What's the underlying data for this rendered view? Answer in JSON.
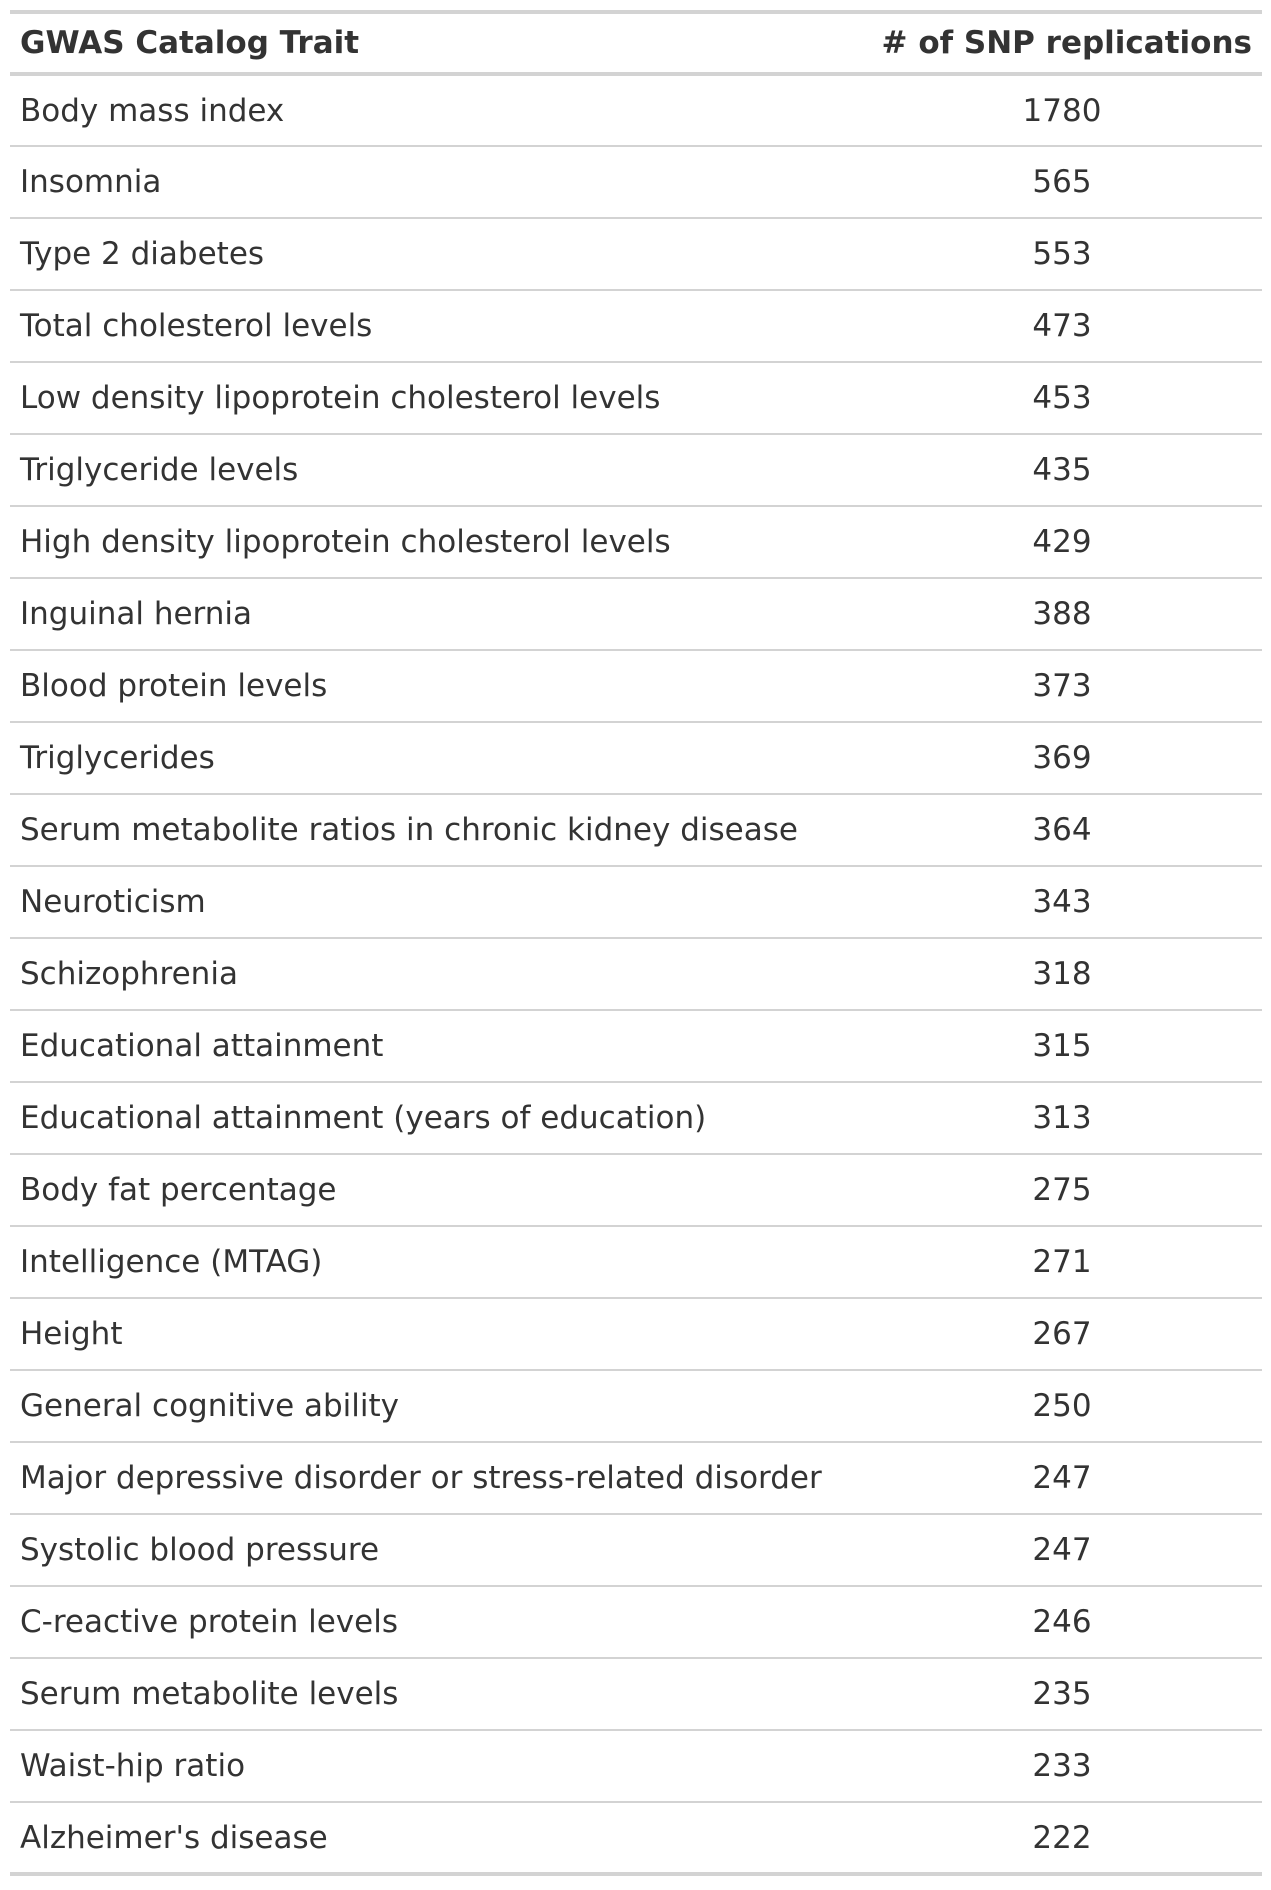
{
  "table": {
    "headers": {
      "trait": "GWAS Catalog Trait",
      "count": "# of SNP replications"
    },
    "rows": [
      {
        "trait": "Body mass index",
        "count": "1780"
      },
      {
        "trait": "Insomnia",
        "count": "565"
      },
      {
        "trait": "Type 2 diabetes",
        "count": "553"
      },
      {
        "trait": "Total cholesterol levels",
        "count": "473"
      },
      {
        "trait": "Low density lipoprotein cholesterol levels",
        "count": "453"
      },
      {
        "trait": "Triglyceride levels",
        "count": "435"
      },
      {
        "trait": "High density lipoprotein cholesterol levels",
        "count": "429"
      },
      {
        "trait": "Inguinal hernia",
        "count": "388"
      },
      {
        "trait": "Blood protein levels",
        "count": "373"
      },
      {
        "trait": "Triglycerides",
        "count": "369"
      },
      {
        "trait": "Serum metabolite ratios in chronic kidney disease",
        "count": "364"
      },
      {
        "trait": "Neuroticism",
        "count": "343"
      },
      {
        "trait": "Schizophrenia",
        "count": "318"
      },
      {
        "trait": "Educational attainment",
        "count": "315"
      },
      {
        "trait": "Educational attainment (years of education)",
        "count": "313"
      },
      {
        "trait": "Body fat percentage",
        "count": "275"
      },
      {
        "trait": "Intelligence (MTAG)",
        "count": "271"
      },
      {
        "trait": "Height",
        "count": "267"
      },
      {
        "trait": "General cognitive ability",
        "count": "250"
      },
      {
        "trait": "Major depressive disorder or stress-related disorder",
        "count": "247"
      },
      {
        "trait": "Systolic blood pressure",
        "count": "247"
      },
      {
        "trait": "C-reactive protein levels",
        "count": "246"
      },
      {
        "trait": "Serum metabolite levels",
        "count": "235"
      },
      {
        "trait": "Waist-hip ratio",
        "count": "233"
      },
      {
        "trait": "Alzheimer's disease",
        "count": "222"
      }
    ]
  }
}
